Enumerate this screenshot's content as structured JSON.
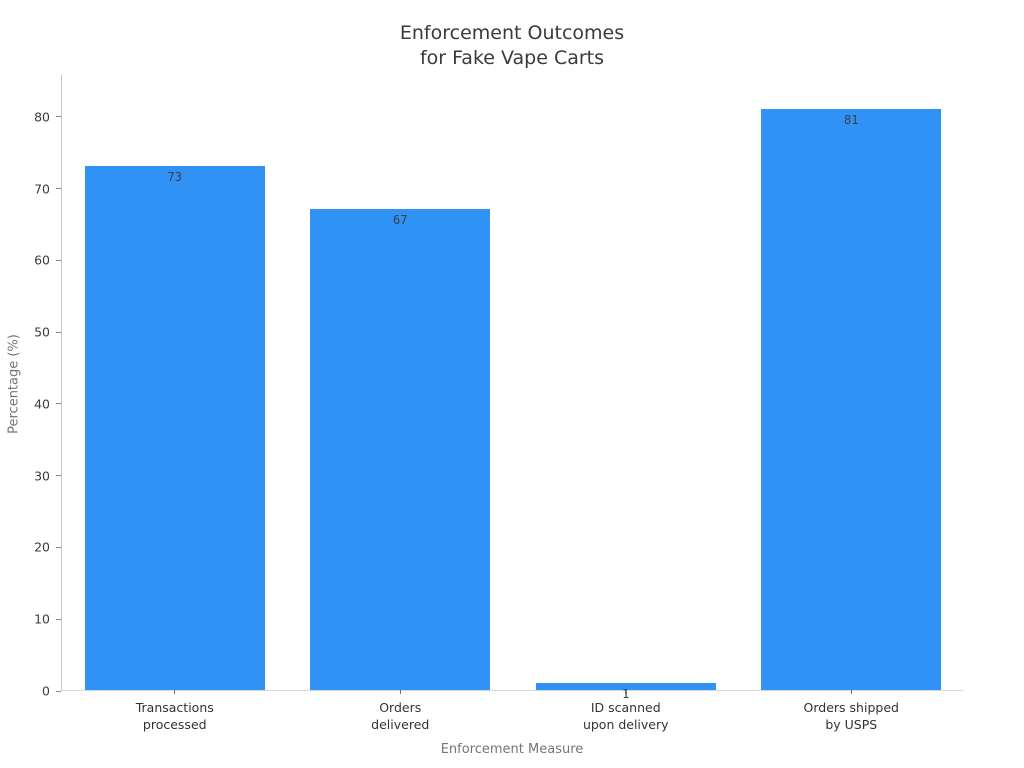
{
  "figure": {
    "title": "Enforcement Outcomes\nfor Fake Vape Carts"
  },
  "chart_data": {
    "type": "bar",
    "title": "Enforcement Outcomes\nfor Fake Vape Carts",
    "categories": [
      "Transactions\nprocessed",
      "Orders\ndelivered",
      "ID scanned\nupon delivery",
      "Orders shipped\nby USPS"
    ],
    "values": [
      73,
      67,
      1,
      81
    ],
    "bar_labels": [
      "73",
      "67",
      "1",
      "81"
    ],
    "xlabel": "Enforcement Measure",
    "ylabel": "Percentage (%)",
    "ylim": [
      0,
      85.85
    ],
    "yticks": [
      0,
      10,
      20,
      30,
      40,
      50,
      60,
      70,
      80
    ],
    "grid": false,
    "legend": null,
    "bar_color": "#3092F5",
    "value_label_position": "inside-top"
  },
  "colors": {
    "bar": "#3092F5",
    "title_text": "#3a3a3a",
    "axis_label_text": "#757575",
    "tick_label_text": "#3c3c3c",
    "left_spine": "#c6c6c6",
    "bottom_spine": "#d9d9d9",
    "background": "#ffffff"
  }
}
